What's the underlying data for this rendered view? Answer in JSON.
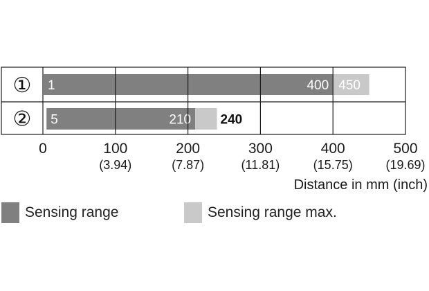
{
  "chart_data": {
    "type": "bar",
    "orientation": "horizontal",
    "stacked_overlay": true,
    "rows": [
      {
        "marker": "①",
        "min": 1,
        "range_end": 400,
        "max": 450
      },
      {
        "marker": "②",
        "min": 5,
        "range_end": 210,
        "max": 240
      }
    ],
    "x_ticks": [
      {
        "value": 0,
        "label": "0",
        "sub": ""
      },
      {
        "value": 100,
        "label": "100",
        "sub": "(3.94)"
      },
      {
        "value": 200,
        "label": "200",
        "sub": "(7.87)"
      },
      {
        "value": 300,
        "label": "300",
        "sub": "(11.81)"
      },
      {
        "value": 400,
        "label": "400",
        "sub": "(15.75)"
      },
      {
        "value": 500,
        "label": "500",
        "sub": "(19.69)"
      }
    ],
    "xlim": [
      0,
      500
    ],
    "xlabel": "Distance in mm (inch)",
    "grid": true,
    "legend_position": "bottom",
    "legend": [
      {
        "key": "range",
        "label": "Sensing range"
      },
      {
        "key": "max",
        "label": "Sensing range max."
      }
    ],
    "colors": {
      "range": "#808080",
      "max": "#c9c9c9",
      "grid": "#1a1a1a"
    }
  }
}
